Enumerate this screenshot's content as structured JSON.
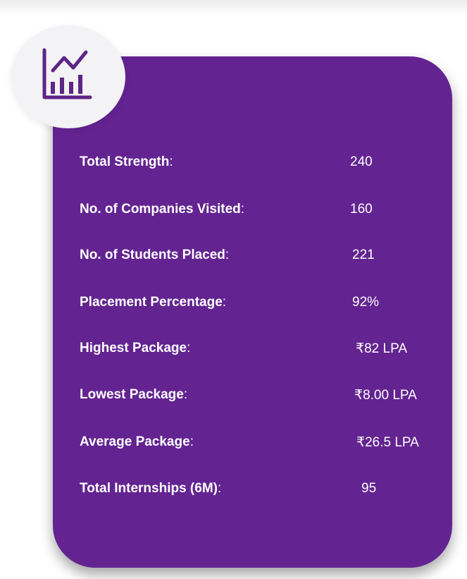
{
  "icon": "bar-chart-trend-icon",
  "colors": {
    "card": "#632391",
    "icon": "#5d2585",
    "badge": "#f3f2f5"
  },
  "stats": [
    {
      "label": "Total Strength",
      "colon": ":",
      "value": "240"
    },
    {
      "label": "No. of Companies Visited",
      "colon": ":",
      "value": "160"
    },
    {
      "label": "No. of Students Placed",
      "colon": ":",
      "value": "221"
    },
    {
      "label": "Placement Percentage",
      "colon": ":",
      "value": "92%"
    },
    {
      "label": "Highest Package",
      "colon": ":",
      "value": "₹82 LPA"
    },
    {
      "label": "Lowest Package",
      "colon": ":",
      "value": "₹8.00 LPA"
    },
    {
      "label": "Average Package",
      "colon": ":",
      "value": "₹26.5 LPA"
    },
    {
      "label": "Total Internships (6M)",
      "colon": ":",
      "value": "95"
    }
  ]
}
